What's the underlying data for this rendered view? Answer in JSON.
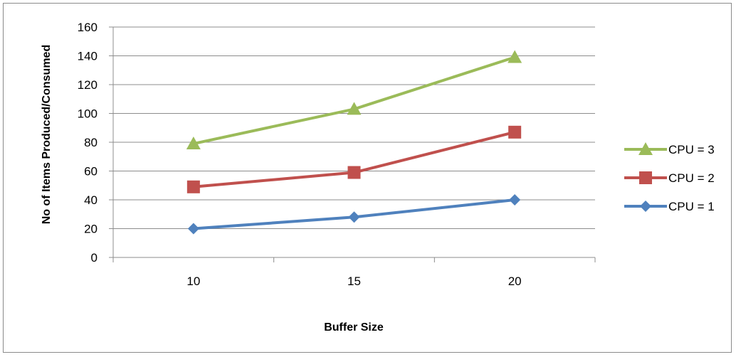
{
  "chart_data": {
    "type": "line",
    "title": "",
    "xlabel": "Buffer Size",
    "ylabel": "No of Items Produced/Consumed",
    "categories": [
      "10",
      "15",
      "20"
    ],
    "ylim": [
      0,
      160
    ],
    "yticks": [
      "0",
      "20",
      "40",
      "60",
      "80",
      "100",
      "120",
      "140",
      "160"
    ],
    "grid": "horizontal",
    "legend_position": "right",
    "series": [
      {
        "name": "CPU = 1",
        "values": [
          20,
          28,
          40
        ],
        "color": "#4F81BD",
        "marker": "diamond"
      },
      {
        "name": "CPU = 2",
        "values": [
          49,
          59,
          87
        ],
        "color": "#C0504D",
        "marker": "square"
      },
      {
        "name": "CPU = 3",
        "values": [
          79,
          103,
          139
        ],
        "color": "#9BBB59",
        "marker": "triangle"
      }
    ],
    "legend_order": [
      "CPU = 3",
      "CPU = 2",
      "CPU = 1"
    ]
  }
}
